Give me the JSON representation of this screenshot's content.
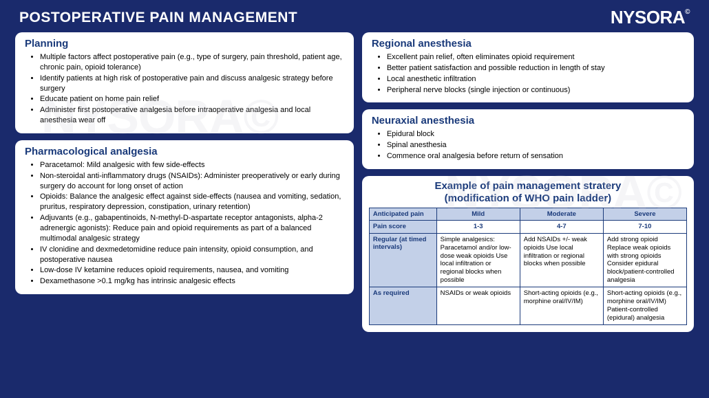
{
  "header": {
    "title": "POSTOPERATIVE PAIN MANAGEMENT",
    "logo": "NYSORA",
    "logo_sup": "©"
  },
  "watermark": "NYSORA©",
  "cards": {
    "planning": {
      "title": "Planning",
      "items": [
        "Multiple factors affect postoperative pain (e.g., type of surgery, pain threshold, patient age, chronic pain, opioid tolerance)",
        "Identify patients at high risk of postoperative pain and discuss analgesic strategy before surgery",
        "Educate patient on home pain relief",
        "Administer first postoperative analgesia before intraoperative analgesia and local anesthesia wear off"
      ]
    },
    "pharma": {
      "title": "Pharmacological analgesia",
      "items": [
        "Paracetamol: Mild analgesic with few side-effects",
        "Non-steroidal anti-inflammatory drugs (NSAIDs): Administer preoperatively or early during surgery do account for long onset of action",
        "Opioids: Balance the analgesic effect against side-effects (nausea and vomiting, sedation, pruritus, respiratory depression, constipation, urinary retention)",
        "Adjuvants (e.g., gabapentinoids, N-methyl-D-aspartate receptor antagonists, alpha-2 adrenergic agonists): Reduce pain and opioid requirements as part of a balanced multimodal analgesic strategy",
        "IV clonidine and dexmedetomidine reduce pain intensity, opioid consumption, and postoperative nausea",
        "Low-dose IV ketamine reduces opioid requirements, nausea, and vomiting",
        "Dexamethasone >0.1 mg/kg has intrinsic analgesic effects"
      ]
    },
    "regional": {
      "title": "Regional anesthesia",
      "items": [
        "Excellent pain relief, often eliminates opioid requirement",
        "Better patient satisfaction and possible reduction in length of stay",
        "Local anesthetic infiltration",
        "Peripheral nerve blocks (single injection or continuous)"
      ]
    },
    "neuraxial": {
      "title": "Neuraxial anesthesia",
      "items": [
        "Epidural block",
        "Spinal anesthesia",
        "Commence oral analgesia before return of sensation"
      ]
    }
  },
  "table": {
    "title_line1": "Example of pain management stratery",
    "title_line2": "(modification of WHO pain ladder)",
    "head": [
      "Anticipated pain",
      "Mild",
      "Moderate",
      "Severe"
    ],
    "score_label": "Pain score",
    "scores": [
      "1-3",
      "4-7",
      "7-10"
    ],
    "rows": [
      {
        "label": "Regular (at timed intervals)",
        "cells": [
          "Simple analgesics: Paracetamol and/or low-dose weak opioids\nUse local infiltration or regional blocks when possible",
          "Add NSAIDs +/- weak opioids\nUse local infiltration or regional blocks when possible",
          "Add strong opioid\nReplace weak opioids with strong opioids\nConsider epidural block/patient-controlled analgesia"
        ]
      },
      {
        "label": "As required",
        "cells": [
          "NSAIDs or weak opioids",
          "Short-acting opioids (e.g., morphine oral/IV/IM)",
          "Short-acting opioids (e.g., morphine oral/IV/IM)\nPatient-controlled (epidural) analgesia"
        ]
      }
    ]
  }
}
